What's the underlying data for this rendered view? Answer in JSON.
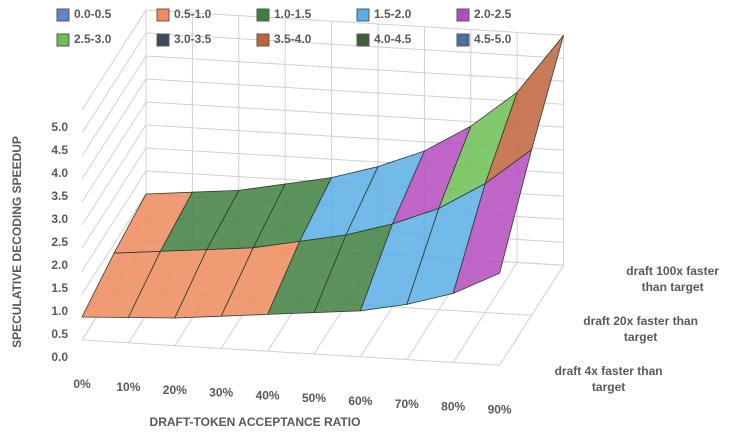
{
  "chart_data": {
    "type": "surface",
    "x_label": "DRAFT-TOKEN ACCEPTANCE RATIO",
    "z_label": "SPECULATIVE DECODING SPEEDUP",
    "categories": [
      "0%",
      "10%",
      "20%",
      "30%",
      "40%",
      "50%",
      "60%",
      "70%",
      "80%",
      "90%"
    ],
    "series": [
      {
        "name": "draft 4x faster than target",
        "values": [
          0.5,
          0.55,
          0.6,
          0.7,
          0.8,
          0.9,
          1.0,
          1.2,
          1.5,
          2.0
        ]
      },
      {
        "name": "draft 20x faster than target",
        "values": [
          0.8,
          0.9,
          1.0,
          1.1,
          1.3,
          1.5,
          1.8,
          2.2,
          2.8,
          3.6
        ]
      },
      {
        "name": "draft 100x faster than target",
        "values": [
          1.0,
          1.1,
          1.2,
          1.4,
          1.6,
          1.9,
          2.3,
          2.9,
          3.7,
          5.0
        ]
      }
    ],
    "zlim": [
      0,
      5
    ],
    "zticks": [
      {
        "value": 0,
        "label": "0.0"
      },
      {
        "value": 0.5,
        "label": "0.5"
      },
      {
        "value": 1,
        "label": "1.0"
      },
      {
        "value": 1.5,
        "label": "1.5"
      },
      {
        "value": 2,
        "label": "2.0"
      },
      {
        "value": 2.5,
        "label": "2.5"
      },
      {
        "value": 3,
        "label": "3.0"
      },
      {
        "value": 3.5,
        "label": "3.5"
      },
      {
        "value": 4,
        "label": "4.0"
      },
      {
        "value": 4.5,
        "label": "4.5"
      },
      {
        "value": 5,
        "label": "5.0"
      }
    ],
    "bands": [
      {
        "name": "0.0-0.5",
        "color": "#5a8ac6"
      },
      {
        "name": "0.5-1.0",
        "color": "#ee8a5c"
      },
      {
        "name": "1.0-1.5",
        "color": "#3f8040"
      },
      {
        "name": "1.5-2.0",
        "color": "#58aee6"
      },
      {
        "name": "2.0-2.5",
        "color": "#b54bbf"
      },
      {
        "name": "2.5-3.0",
        "color": "#6cbf54"
      },
      {
        "name": "3.0-3.5",
        "color": "#3b4a5c"
      },
      {
        "name": "3.5-4.0",
        "color": "#c0643c"
      },
      {
        "name": "4.0-4.5",
        "color": "#3d5e3b"
      },
      {
        "name": "4.5-5.0",
        "color": "#4a6fa5"
      }
    ]
  }
}
